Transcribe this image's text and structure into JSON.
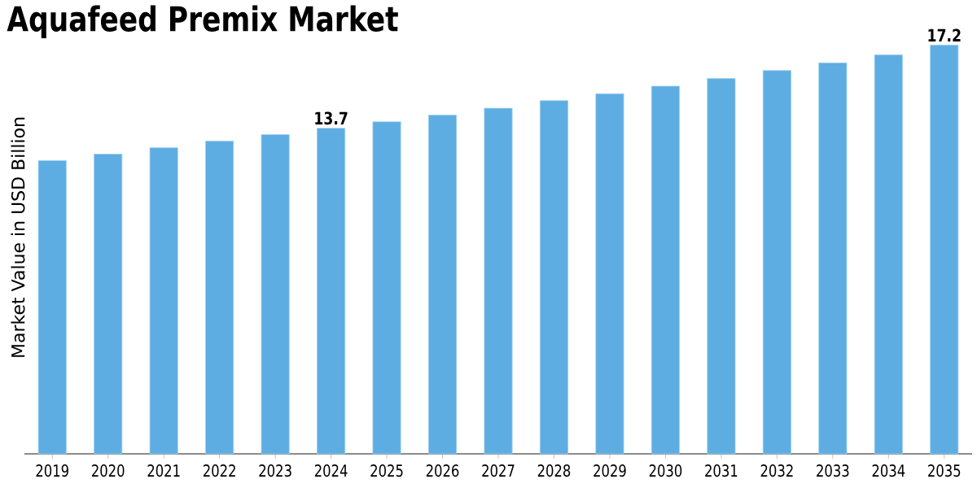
{
  "chart_data": {
    "type": "bar",
    "title": "Aquafeed Premix Market",
    "ylabel": "Market Value in USD Billion",
    "categories": [
      "2019",
      "2020",
      "2021",
      "2022",
      "2023",
      "2024",
      "2025",
      "2026",
      "2027",
      "2028",
      "2029",
      "2030",
      "2031",
      "2032",
      "2033",
      "2034",
      "2035"
    ],
    "values": [
      12.34,
      12.61,
      12.88,
      13.16,
      13.43,
      13.7,
      13.97,
      14.25,
      14.54,
      14.86,
      15.15,
      15.47,
      15.79,
      16.13,
      16.45,
      16.79,
      17.2
    ],
    "value_labels": [
      null,
      null,
      null,
      null,
      null,
      "13.7",
      null,
      null,
      null,
      null,
      null,
      null,
      null,
      null,
      null,
      null,
      "17.2"
    ],
    "color": "#5dade2"
  }
}
